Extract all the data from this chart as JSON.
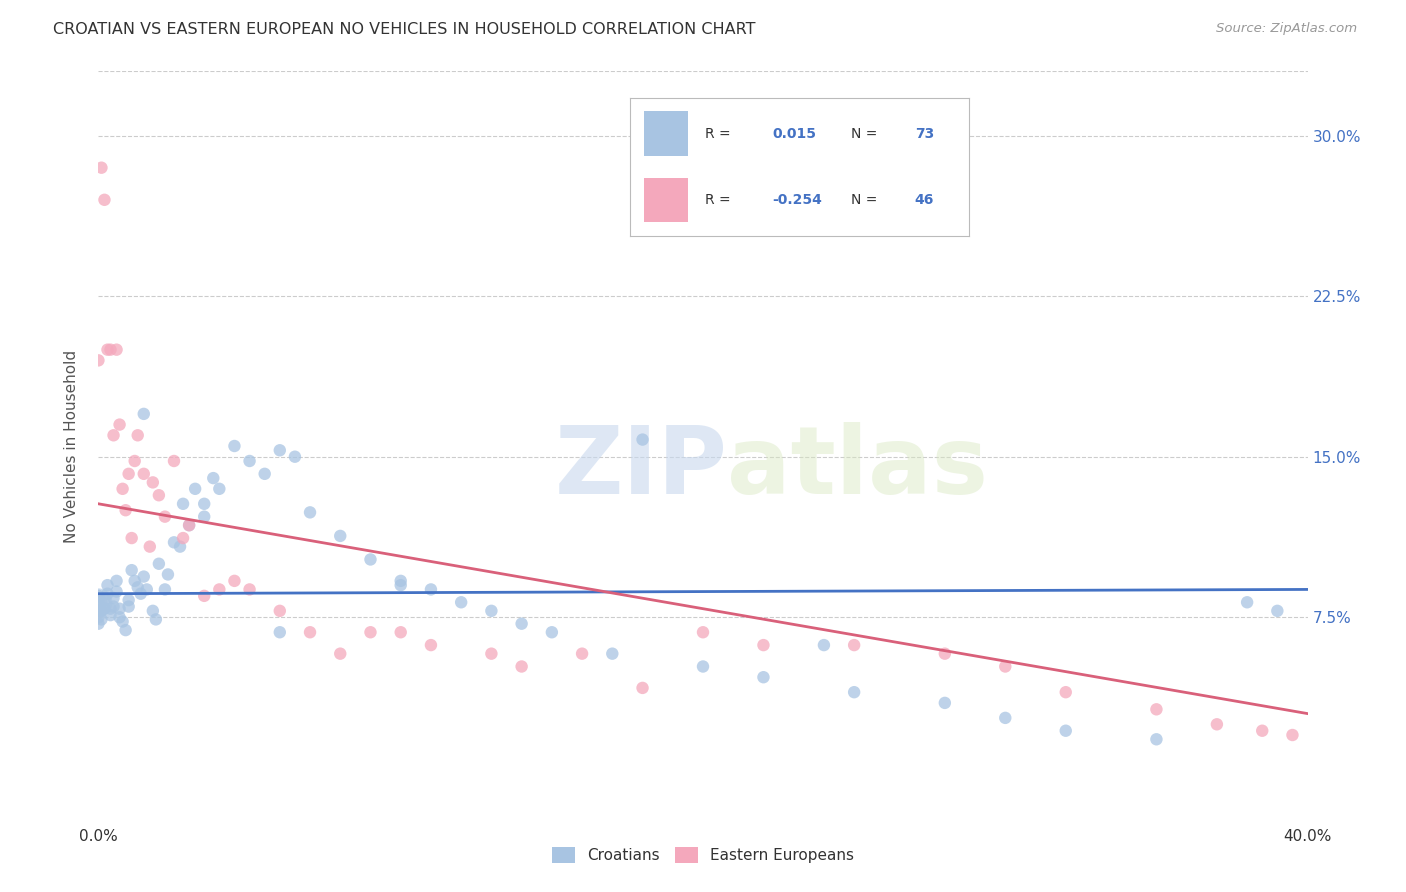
{
  "title": "CROATIAN VS EASTERN EUROPEAN NO VEHICLES IN HOUSEHOLD CORRELATION CHART",
  "source": "Source: ZipAtlas.com",
  "ylabel": "No Vehicles in Household",
  "yticks": [
    "7.5%",
    "15.0%",
    "22.5%",
    "30.0%"
  ],
  "ytick_values": [
    0.075,
    0.15,
    0.225,
    0.3
  ],
  "xlim": [
    0.0,
    0.4
  ],
  "ylim": [
    -0.02,
    0.33
  ],
  "legend_r_croatian": "0.015",
  "legend_n_croatian": "73",
  "legend_r_eastern": "-0.254",
  "legend_n_eastern": "46",
  "color_croatian": "#a8c4e2",
  "color_eastern": "#f4a8bc",
  "color_blue_line": "#4472c4",
  "color_pink_line": "#d9607a",
  "color_blue_text": "#4472c4",
  "watermark_zip": "ZIP",
  "watermark_atlas": "atlas",
  "background_color": "#ffffff",
  "grid_color": "#cccccc",
  "croatian_x": [
    0.0,
    0.0,
    0.0,
    0.0,
    0.0,
    0.001,
    0.001,
    0.001,
    0.002,
    0.002,
    0.003,
    0.003,
    0.004,
    0.004,
    0.005,
    0.005,
    0.006,
    0.006,
    0.007,
    0.007,
    0.008,
    0.009,
    0.01,
    0.01,
    0.011,
    0.012,
    0.013,
    0.014,
    0.015,
    0.016,
    0.018,
    0.019,
    0.02,
    0.022,
    0.023,
    0.025,
    0.027,
    0.028,
    0.03,
    0.032,
    0.035,
    0.038,
    0.04,
    0.045,
    0.05,
    0.055,
    0.06,
    0.065,
    0.07,
    0.08,
    0.09,
    0.1,
    0.11,
    0.12,
    0.13,
    0.14,
    0.15,
    0.17,
    0.2,
    0.22,
    0.25,
    0.28,
    0.3,
    0.32,
    0.35,
    0.38,
    0.39,
    0.24,
    0.18,
    0.1,
    0.06,
    0.035,
    0.015
  ],
  "croatian_y": [
    0.085,
    0.082,
    0.078,
    0.075,
    0.072,
    0.082,
    0.078,
    0.074,
    0.083,
    0.079,
    0.09,
    0.086,
    0.079,
    0.076,
    0.084,
    0.08,
    0.092,
    0.087,
    0.079,
    0.075,
    0.073,
    0.069,
    0.083,
    0.08,
    0.097,
    0.092,
    0.089,
    0.086,
    0.094,
    0.088,
    0.078,
    0.074,
    0.1,
    0.088,
    0.095,
    0.11,
    0.108,
    0.128,
    0.118,
    0.135,
    0.128,
    0.14,
    0.135,
    0.155,
    0.148,
    0.142,
    0.153,
    0.15,
    0.124,
    0.113,
    0.102,
    0.092,
    0.088,
    0.082,
    0.078,
    0.072,
    0.068,
    0.058,
    0.052,
    0.047,
    0.04,
    0.035,
    0.028,
    0.022,
    0.018,
    0.082,
    0.078,
    0.062,
    0.158,
    0.09,
    0.068,
    0.122,
    0.17
  ],
  "eastern_x": [
    0.0,
    0.001,
    0.002,
    0.003,
    0.004,
    0.005,
    0.006,
    0.007,
    0.008,
    0.009,
    0.01,
    0.011,
    0.012,
    0.013,
    0.015,
    0.017,
    0.018,
    0.02,
    0.022,
    0.025,
    0.028,
    0.03,
    0.035,
    0.04,
    0.045,
    0.05,
    0.06,
    0.07,
    0.08,
    0.09,
    0.1,
    0.11,
    0.13,
    0.14,
    0.16,
    0.18,
    0.2,
    0.22,
    0.25,
    0.28,
    0.3,
    0.32,
    0.35,
    0.37,
    0.385,
    0.395
  ],
  "eastern_y": [
    0.195,
    0.285,
    0.27,
    0.2,
    0.2,
    0.16,
    0.2,
    0.165,
    0.135,
    0.125,
    0.142,
    0.112,
    0.148,
    0.16,
    0.142,
    0.108,
    0.138,
    0.132,
    0.122,
    0.148,
    0.112,
    0.118,
    0.085,
    0.088,
    0.092,
    0.088,
    0.078,
    0.068,
    0.058,
    0.068,
    0.068,
    0.062,
    0.058,
    0.052,
    0.058,
    0.042,
    0.068,
    0.062,
    0.062,
    0.058,
    0.052,
    0.04,
    0.032,
    0.025,
    0.022,
    0.02
  ]
}
